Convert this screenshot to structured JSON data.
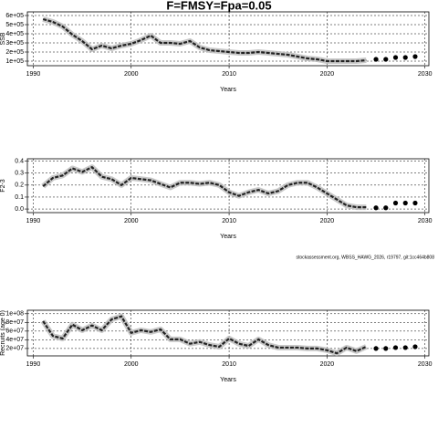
{
  "title": "F=FMSY=Fpa=0.05",
  "footnote": "stockassessment.org, WBSS_HAWG_2026, r19797, git:1cc464b808",
  "chart_data": [
    {
      "type": "line",
      "ylabel": "SSB",
      "xlabel": "Years",
      "x": [
        1991,
        1992,
        1993,
        1994,
        1995,
        1996,
        1997,
        1998,
        1999,
        2000,
        2001,
        2002,
        2003,
        2004,
        2005,
        2006,
        2007,
        2008,
        2009,
        2010,
        2011,
        2012,
        2013,
        2014,
        2015,
        2016,
        2017,
        2018,
        2019,
        2020,
        2021,
        2022,
        2023,
        2024,
        2025,
        2026,
        2027,
        2028,
        2029
      ],
      "series": [
        {
          "kind": "line",
          "color": "#222222",
          "values": [
            560000,
            530000,
            480000,
            390000,
            320000,
            230000,
            270000,
            240000,
            270000,
            290000,
            330000,
            380000,
            300000,
            300000,
            290000,
            320000,
            250000,
            220000,
            210000,
            200000,
            190000,
            190000,
            200000,
            190000,
            180000,
            170000,
            150000,
            130000,
            120000,
            100000,
            100000,
            100000,
            100000,
            110000,
            null,
            null,
            null,
            null,
            null
          ]
        },
        {
          "kind": "points",
          "color": "#000000",
          "values": [
            null,
            null,
            null,
            null,
            null,
            null,
            null,
            null,
            null,
            null,
            null,
            null,
            null,
            null,
            null,
            null,
            null,
            null,
            null,
            null,
            null,
            null,
            null,
            null,
            null,
            null,
            null,
            null,
            null,
            null,
            null,
            null,
            null,
            null,
            120000,
            120000,
            140000,
            140000,
            150000
          ]
        }
      ],
      "xlim": [
        1989.4,
        2030.4
      ],
      "xticks": [
        1990,
        2000,
        2010,
        2020,
        2030
      ],
      "ylim": [
        50000,
        640000
      ],
      "yticks": [
        {
          "value": 100000,
          "label": "1e+05"
        },
        {
          "value": 200000,
          "label": "2e+05"
        },
        {
          "value": 300000,
          "label": "3e+05"
        },
        {
          "value": 400000,
          "label": "4e+05"
        },
        {
          "value": 500000,
          "label": "5e+05"
        },
        {
          "value": 600000,
          "label": "6e+05"
        }
      ],
      "grid": true
    },
    {
      "type": "line",
      "ylabel": "F2-3",
      "xlabel": "Years",
      "x": [
        1991,
        1992,
        1993,
        1994,
        1995,
        1996,
        1997,
        1998,
        1999,
        2000,
        2001,
        2002,
        2003,
        2004,
        2005,
        2006,
        2007,
        2008,
        2009,
        2010,
        2011,
        2012,
        2013,
        2014,
        2015,
        2016,
        2017,
        2018,
        2019,
        2020,
        2021,
        2022,
        2023,
        2024,
        2025,
        2026,
        2027,
        2028,
        2029
      ],
      "series": [
        {
          "kind": "line",
          "color": "#222222",
          "values": [
            0.19,
            0.26,
            0.28,
            0.34,
            0.31,
            0.35,
            0.27,
            0.25,
            0.2,
            0.26,
            0.25,
            0.24,
            0.21,
            0.18,
            0.22,
            0.22,
            0.21,
            0.22,
            0.2,
            0.14,
            0.11,
            0.14,
            0.16,
            0.13,
            0.15,
            0.2,
            0.22,
            0.22,
            0.18,
            0.13,
            0.08,
            0.03,
            0.015,
            0.015,
            null,
            null,
            null,
            null,
            null
          ]
        },
        {
          "kind": "points",
          "color": "#000000",
          "values": [
            null,
            null,
            null,
            null,
            null,
            null,
            null,
            null,
            null,
            null,
            null,
            null,
            null,
            null,
            null,
            null,
            null,
            null,
            null,
            null,
            null,
            null,
            null,
            null,
            null,
            null,
            null,
            null,
            null,
            null,
            null,
            null,
            null,
            null,
            0.01,
            0.01,
            0.05,
            0.05,
            0.05
          ]
        }
      ],
      "xlim": [
        1989.4,
        2030.4
      ],
      "xticks": [
        1990,
        2000,
        2010,
        2020,
        2030
      ],
      "ylim": [
        -0.03,
        0.42
      ],
      "yticks": [
        {
          "value": 0,
          "label": "0.0"
        },
        0.1,
        0.2,
        0.3,
        0.4
      ],
      "grid": true
    },
    {
      "type": "line",
      "ylabel": "Recruits (age 0)",
      "xlabel": "Years",
      "x": [
        1991,
        1992,
        1993,
        1994,
        1995,
        1996,
        1997,
        1998,
        1999,
        2000,
        2001,
        2002,
        2003,
        2004,
        2005,
        2006,
        2007,
        2008,
        2009,
        2010,
        2011,
        2012,
        2013,
        2014,
        2015,
        2016,
        2017,
        2018,
        2019,
        2020,
        2021,
        2022,
        2023,
        2024,
        2025,
        2026,
        2027,
        2028,
        2029
      ],
      "series": [
        {
          "kind": "line",
          "color": "#222222",
          "values": [
            83000000,
            49000000,
            43000000,
            75000000,
            62000000,
            73000000,
            62000000,
            87000000,
            94000000,
            56000000,
            62000000,
            58000000,
            64000000,
            41000000,
            41000000,
            31000000,
            35000000,
            28000000,
            24000000,
            43000000,
            31000000,
            26000000,
            41000000,
            28000000,
            22000000,
            22000000,
            22000000,
            20000000,
            20000000,
            16000000,
            9000000,
            22000000,
            14000000,
            24000000,
            null,
            null,
            null,
            null,
            null
          ]
        },
        {
          "kind": "points",
          "color": "#000000",
          "values": [
            null,
            null,
            null,
            null,
            null,
            null,
            null,
            null,
            null,
            null,
            null,
            null,
            null,
            null,
            null,
            null,
            null,
            null,
            null,
            null,
            null,
            null,
            null,
            null,
            null,
            null,
            null,
            null,
            null,
            null,
            null,
            null,
            null,
            null,
            20000000,
            20000000,
            22000000,
            22000000,
            24000000
          ]
        }
      ],
      "xlim": [
        1989.4,
        2030.4
      ],
      "xticks": [
        1990,
        2000,
        2010,
        2020,
        2030
      ],
      "ylim": [
        3000000,
        108000000
      ],
      "yticks": [
        {
          "value": 20000000,
          "label": "2e+07"
        },
        {
          "value": 40000000,
          "label": "4e+07"
        },
        {
          "value": 60000000,
          "label": "6e+07"
        },
        {
          "value": 80000000,
          "label": "8e+07"
        },
        {
          "value": 100000000,
          "label": "1e+08"
        }
      ],
      "grid": true
    }
  ]
}
